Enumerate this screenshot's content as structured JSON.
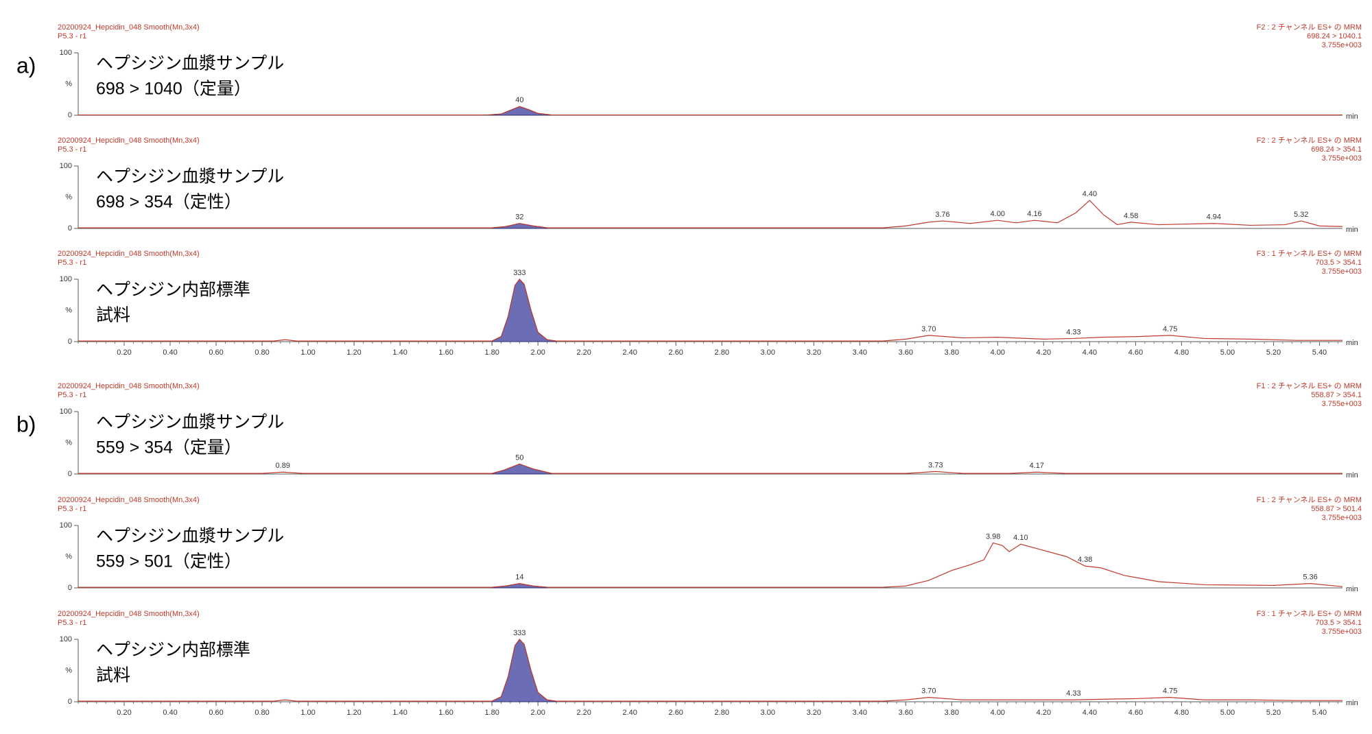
{
  "chart_data": [
    {
      "type": "line",
      "group_label": "a)",
      "header_left": [
        "20200924_Hepcidin_048 Smooth(Mn,3x4)",
        "P5.3 - r1"
      ],
      "header_right": [
        "F2 : 2 チャンネル ES+ の MRM",
        "698.24 > 1040.1",
        "3.755e+003"
      ],
      "label_lines": [
        "ヘプシジン血漿サンプル",
        "698 > 1040（定量）"
      ],
      "xlim": [
        0,
        5.5
      ],
      "ylim": [
        0,
        100
      ],
      "yticks": [
        0,
        100
      ],
      "ylabel": "%",
      "xlabel": "min",
      "color": "#c0392b",
      "shaded": {
        "from": 1.78,
        "to": 2.06,
        "color": "#6b6db5"
      },
      "x": [
        0,
        1.0,
        1.78,
        1.84,
        1.88,
        1.92,
        1.96,
        2.0,
        2.06,
        3.0,
        4.0,
        5.5
      ],
      "values": [
        0.5,
        0.5,
        0.5,
        2,
        8,
        14,
        9,
        3,
        0.5,
        0.5,
        0.5,
        0.5
      ],
      "annotations": [
        {
          "x": 1.92,
          "y": 14,
          "label": "40"
        }
      ]
    },
    {
      "type": "line",
      "header_left": [
        "20200924_Hepcidin_048 Smooth(Mn,3x4)",
        "P5.3 - r1"
      ],
      "header_right": [
        "F2 : 2 チャンネル ES+ の MRM",
        "698.24 > 354.1",
        "3.755e+003"
      ],
      "label_lines": [
        "ヘプシジン血漿サンプル",
        "698 > 354（定性）"
      ],
      "xlim": [
        0,
        5.5
      ],
      "ylim": [
        0,
        100
      ],
      "yticks": [
        0,
        100
      ],
      "ylabel": "%",
      "xlabel": "min",
      "color": "#c0392b",
      "shaded": {
        "from": 1.8,
        "to": 2.04,
        "color": "#6b6db5"
      },
      "x": [
        0,
        1.5,
        1.8,
        1.86,
        1.92,
        1.98,
        2.04,
        3.0,
        3.5,
        3.6,
        3.7,
        3.76,
        3.88,
        4.0,
        4.08,
        4.16,
        4.26,
        4.34,
        4.4,
        4.46,
        4.52,
        4.58,
        4.7,
        4.94,
        5.1,
        5.25,
        5.32,
        5.4,
        5.5
      ],
      "values": [
        1,
        1,
        1,
        3,
        8,
        4,
        1,
        1,
        1,
        4,
        10,
        12,
        8,
        13,
        9,
        13,
        9,
        25,
        45,
        22,
        6,
        10,
        6,
        8,
        5,
        6,
        12,
        4,
        3
      ],
      "annotations": [
        {
          "x": 1.92,
          "y": 8,
          "label": "32"
        },
        {
          "x": 3.76,
          "y": 12,
          "label": "3.76"
        },
        {
          "x": 4.0,
          "y": 13,
          "label": "4.00"
        },
        {
          "x": 4.16,
          "y": 13,
          "label": "4.16"
        },
        {
          "x": 4.4,
          "y": 45,
          "label": "4.40"
        },
        {
          "x": 4.58,
          "y": 10,
          "label": "4.58"
        },
        {
          "x": 4.94,
          "y": 8,
          "label": "4.94"
        },
        {
          "x": 5.32,
          "y": 12,
          "label": "5.32"
        }
      ]
    },
    {
      "type": "line",
      "header_left": [
        "20200924_Hepcidin_048 Smooth(Mn,3x4)",
        "P5.3 - r1"
      ],
      "header_right": [
        "F3 : 1 チャンネル ES+ の MRM",
        "703.5 > 354.1",
        "3.755e+003"
      ],
      "label_lines": [
        "ヘプシジン内部標準",
        "試料"
      ],
      "xlim": [
        0,
        5.5
      ],
      "ylim": [
        0,
        100
      ],
      "yticks": [
        0,
        100
      ],
      "ylabel": "%",
      "xlabel": "min",
      "color": "#c0392b",
      "shaded": {
        "from": 1.8,
        "to": 2.08,
        "color": "#6b6db5"
      },
      "minor_ticks_per_interval": 5,
      "xticks": [
        {
          "value": 0.2,
          "label": "0.20"
        },
        {
          "value": 0.4,
          "label": "0.40"
        },
        {
          "value": 0.6,
          "label": "0.60"
        },
        {
          "value": 0.8,
          "label": "0.80"
        },
        {
          "value": 1.0,
          "label": "1.00"
        },
        {
          "value": 1.2,
          "label": "1.20"
        },
        {
          "value": 1.4,
          "label": "1.40"
        },
        {
          "value": 1.6,
          "label": "1.60"
        },
        {
          "value": 1.8,
          "label": "1.80"
        },
        {
          "value": 2.0,
          "label": "2.00"
        },
        {
          "value": 2.2,
          "label": "2.20"
        },
        {
          "value": 2.4,
          "label": "2.40"
        },
        {
          "value": 2.6,
          "label": "2.60"
        },
        {
          "value": 2.8,
          "label": "2.80"
        },
        {
          "value": 3.0,
          "label": "3.00"
        },
        {
          "value": 3.2,
          "label": "3.20"
        },
        {
          "value": 3.4,
          "label": "3.40"
        },
        {
          "value": 3.6,
          "label": "3.60"
        },
        {
          "value": 3.8,
          "label": "3.80"
        },
        {
          "value": 4.0,
          "label": "4.00"
        },
        {
          "value": 4.2,
          "label": "4.20"
        },
        {
          "value": 4.4,
          "label": "4.40"
        },
        {
          "value": 4.6,
          "label": "4.60"
        },
        {
          "value": 4.8,
          "label": "4.80"
        },
        {
          "value": 5.0,
          "label": "5.00"
        },
        {
          "value": 5.2,
          "label": "5.20"
        },
        {
          "value": 5.4,
          "label": "5.40"
        }
      ],
      "x": [
        0,
        0.85,
        0.9,
        0.95,
        1.8,
        1.84,
        1.87,
        1.9,
        1.92,
        1.94,
        1.97,
        2.0,
        2.04,
        2.08,
        3.5,
        3.6,
        3.7,
        3.85,
        4.0,
        4.2,
        4.33,
        4.45,
        4.6,
        4.75,
        4.9,
        5.1,
        5.3,
        5.5
      ],
      "values": [
        1,
        1,
        3,
        1,
        1,
        8,
        40,
        90,
        100,
        92,
        50,
        15,
        3,
        1,
        1,
        4,
        10,
        6,
        7,
        4,
        5,
        7,
        8,
        10,
        5,
        4,
        2,
        2
      ],
      "annotations": [
        {
          "x": 1.92,
          "y": 100,
          "label": "333"
        },
        {
          "x": 3.7,
          "y": 10,
          "label": "3.70"
        },
        {
          "x": 4.33,
          "y": 5,
          "label": "4.33"
        },
        {
          "x": 4.75,
          "y": 10,
          "label": "4.75"
        }
      ]
    },
    {
      "type": "line",
      "group_label": "b)",
      "header_left": [
        "20200924_Hepcidin_048 Smooth(Mn,3x4)",
        "P5.3 - r1"
      ],
      "header_right": [
        "F1 : 2 チャンネル ES+ の MRM",
        "558.87 > 354.1",
        "3.755e+003"
      ],
      "label_lines": [
        "ヘプシジン血漿サンプル",
        "559 > 354（定量）"
      ],
      "xlim": [
        0,
        5.5
      ],
      "ylim": [
        0,
        100
      ],
      "yticks": [
        0,
        100
      ],
      "ylabel": "%",
      "xlabel": "min",
      "color": "#c0392b",
      "shaded": {
        "from": 1.8,
        "to": 2.06,
        "color": "#6b6db5"
      },
      "x": [
        0,
        0.8,
        0.89,
        0.98,
        1.8,
        1.85,
        1.92,
        1.98,
        2.06,
        3.0,
        3.6,
        3.73,
        3.85,
        4.05,
        4.17,
        4.3,
        5.5
      ],
      "values": [
        1,
        1,
        3,
        1,
        1,
        6,
        16,
        8,
        1,
        1,
        1,
        4,
        1,
        1,
        3,
        1,
        1
      ],
      "annotations": [
        {
          "x": 0.89,
          "y": 3,
          "label": "0.89"
        },
        {
          "x": 1.92,
          "y": 16,
          "label": "50"
        },
        {
          "x": 3.73,
          "y": 4,
          "label": "3.73"
        },
        {
          "x": 4.17,
          "y": 3,
          "label": "4.17"
        }
      ]
    },
    {
      "type": "line",
      "header_left": [
        "20200924_Hepcidin_048 Smooth(Mn,3x4)",
        "P5.3 - r1"
      ],
      "header_right": [
        "F1 : 2 チャンネル ES+ の MRM",
        "558.87 > 501.4",
        "3.755e+003"
      ],
      "label_lines": [
        "ヘプシジン血漿サンプル",
        "559 > 501（定性）"
      ],
      "xlim": [
        0,
        5.5
      ],
      "ylim": [
        0,
        100
      ],
      "yticks": [
        0,
        100
      ],
      "ylabel": "%",
      "xlabel": "min",
      "color": "#c0392b",
      "shaded": {
        "from": 1.8,
        "to": 2.04,
        "color": "#6b6db5"
      },
      "x": [
        0,
        1.8,
        1.86,
        1.92,
        1.98,
        2.04,
        3.5,
        3.6,
        3.7,
        3.8,
        3.88,
        3.94,
        3.98,
        4.02,
        4.05,
        4.1,
        4.18,
        4.3,
        4.38,
        4.45,
        4.55,
        4.7,
        4.9,
        5.2,
        5.36,
        5.5
      ],
      "values": [
        1,
        1,
        3,
        7,
        3,
        1,
        1,
        3,
        12,
        28,
        37,
        45,
        72,
        68,
        58,
        70,
        62,
        50,
        35,
        32,
        20,
        10,
        5,
        4,
        7,
        2
      ],
      "annotations": [
        {
          "x": 1.92,
          "y": 7,
          "label": "14"
        },
        {
          "x": 3.98,
          "y": 72,
          "label": "3.98"
        },
        {
          "x": 4.1,
          "y": 70,
          "label": "4.10"
        },
        {
          "x": 4.38,
          "y": 35,
          "label": "4.38"
        },
        {
          "x": 5.36,
          "y": 7,
          "label": "5.36"
        }
      ]
    },
    {
      "type": "line",
      "header_left": [
        "20200924_Hepcidin_048 Smooth(Mn,3x4)",
        "P5.3 - r1"
      ],
      "header_right": [
        "F3 : 1 チャンネル ES+ の MRM",
        "703.5 > 354.1",
        "3.755e+003"
      ],
      "label_lines": [
        "ヘプシジン内部標準",
        "試料"
      ],
      "xlim": [
        0,
        5.5
      ],
      "ylim": [
        0,
        100
      ],
      "yticks": [
        0,
        100
      ],
      "ylabel": "%",
      "xlabel": "min",
      "color": "#c0392b",
      "shaded": {
        "from": 1.8,
        "to": 2.08,
        "color": "#6b6db5"
      },
      "minor_ticks_per_interval": 5,
      "xticks": [
        {
          "value": 0.2,
          "label": "0.20"
        },
        {
          "value": 0.4,
          "label": "0.40"
        },
        {
          "value": 0.6,
          "label": "0.60"
        },
        {
          "value": 0.8,
          "label": "0.80"
        },
        {
          "value": 1.0,
          "label": "1.00"
        },
        {
          "value": 1.2,
          "label": "1.20"
        },
        {
          "value": 1.4,
          "label": "1.40"
        },
        {
          "value": 1.6,
          "label": "1.60"
        },
        {
          "value": 1.8,
          "label": "1.80"
        },
        {
          "value": 2.0,
          "label": "2.00"
        },
        {
          "value": 2.2,
          "label": "2.20"
        },
        {
          "value": 2.4,
          "label": "2.40"
        },
        {
          "value": 2.6,
          "label": "2.60"
        },
        {
          "value": 2.8,
          "label": "2.80"
        },
        {
          "value": 3.0,
          "label": "3.00"
        },
        {
          "value": 3.2,
          "label": "3.20"
        },
        {
          "value": 3.4,
          "label": "3.40"
        },
        {
          "value": 3.6,
          "label": "3.60"
        },
        {
          "value": 3.8,
          "label": "3.80"
        },
        {
          "value": 4.0,
          "label": "4.00"
        },
        {
          "value": 4.2,
          "label": "4.20"
        },
        {
          "value": 4.4,
          "label": "4.40"
        },
        {
          "value": 4.6,
          "label": "4.60"
        },
        {
          "value": 4.8,
          "label": "4.80"
        },
        {
          "value": 5.0,
          "label": "5.00"
        },
        {
          "value": 5.2,
          "label": "5.20"
        },
        {
          "value": 5.4,
          "label": "5.40"
        }
      ],
      "x": [
        0,
        0.85,
        0.9,
        0.95,
        1.8,
        1.84,
        1.87,
        1.9,
        1.92,
        1.94,
        1.97,
        2.0,
        2.04,
        2.08,
        3.5,
        3.6,
        3.7,
        3.85,
        4.1,
        4.33,
        4.45,
        4.6,
        4.75,
        4.9,
        5.1,
        5.3,
        5.5
      ],
      "values": [
        1,
        1,
        3,
        1,
        1,
        8,
        40,
        90,
        100,
        92,
        50,
        15,
        3,
        1,
        1,
        3,
        7,
        3,
        3,
        3,
        4,
        5,
        7,
        3,
        3,
        2,
        2
      ],
      "annotations": [
        {
          "x": 1.92,
          "y": 100,
          "label": "333"
        },
        {
          "x": 3.7,
          "y": 7,
          "label": "3.70"
        },
        {
          "x": 4.33,
          "y": 3,
          "label": "4.33"
        },
        {
          "x": 4.75,
          "y": 7,
          "label": "4.75"
        }
      ]
    }
  ]
}
